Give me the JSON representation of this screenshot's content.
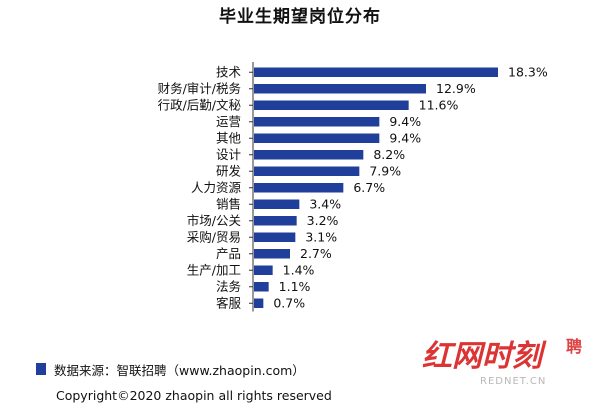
{
  "chart_data": {
    "type": "bar",
    "orientation": "horizontal",
    "title": "毕业生期望岗位分布",
    "categories": [
      "技术",
      "财务/审计/税务",
      "行政/后勤/文秘",
      "运营",
      "其他",
      "设计",
      "研发",
      "人力资源",
      "销售",
      "市场/公关",
      "采购/贸易",
      "产品",
      "生产/加工",
      "法务",
      "客服"
    ],
    "values": [
      18.3,
      12.9,
      11.6,
      9.4,
      9.4,
      8.2,
      7.9,
      6.7,
      3.4,
      3.2,
      3.1,
      2.7,
      1.4,
      1.1,
      0.7
    ],
    "value_labels": [
      "18.3%",
      "12.9%",
      "11.6%",
      "9.4%",
      "9.4%",
      "8.2%",
      "7.9%",
      "6.7%",
      "3.4%",
      "3.2%",
      "3.1%",
      "2.7%",
      "1.4%",
      "1.1%",
      "0.7%"
    ],
    "bar_color": "#1f3f9a",
    "grid": false,
    "legend": "none"
  },
  "footer": {
    "source": "数据来源：智联招聘（www.zhaopin.com）",
    "copyright": "Copyright©2020 zhaopin all rights reserved"
  },
  "watermark": {
    "brand": "红网时刻",
    "extra_char": "聘",
    "sub_text": "REDNET.CN"
  }
}
